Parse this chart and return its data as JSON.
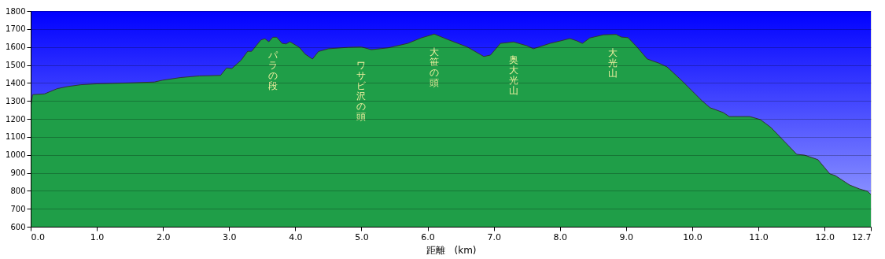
{
  "chart_data": {
    "type": "area",
    "xlabel": "距離　(km)",
    "x": [
      0.0,
      0.03,
      0.21,
      0.4,
      0.56,
      0.76,
      1.0,
      1.32,
      1.87,
      1.99,
      2.27,
      2.55,
      2.87,
      2.96,
      3.04,
      3.18,
      3.28,
      3.34,
      3.48,
      3.54,
      3.6,
      3.66,
      3.72,
      3.8,
      3.86,
      3.92,
      4.06,
      4.15,
      4.26,
      4.35,
      4.5,
      4.8,
      5.0,
      5.15,
      5.4,
      5.7,
      5.9,
      6.1,
      6.3,
      6.6,
      6.85,
      6.95,
      7.1,
      7.3,
      7.5,
      7.6,
      7.85,
      8.0,
      8.15,
      8.25,
      8.34,
      8.45,
      8.66,
      8.85,
      8.93,
      9.03,
      9.17,
      9.32,
      9.49,
      9.62,
      9.85,
      10.15,
      10.27,
      10.47,
      10.56,
      10.87,
      11.03,
      11.19,
      11.58,
      11.7,
      11.87,
      11.9,
      12.08,
      12.16,
      12.38,
      12.53,
      12.65,
      12.7
    ],
    "series": [
      {
        "color": "#1f9e48",
        "values": [
          1266,
          1335,
          1339,
          1368,
          1380,
          1390,
          1395,
          1398,
          1405,
          1415,
          1430,
          1439,
          1442,
          1483,
          1480,
          1526,
          1576,
          1576,
          1639,
          1646,
          1629,
          1654,
          1654,
          1620,
          1617,
          1629,
          1598,
          1560,
          1533,
          1575,
          1590,
          1598,
          1600,
          1585,
          1595,
          1620,
          1650,
          1672,
          1642,
          1600,
          1547,
          1555,
          1620,
          1628,
          1607,
          1590,
          1620,
          1633,
          1647,
          1635,
          1620,
          1650,
          1668,
          1670,
          1655,
          1652,
          1598,
          1533,
          1511,
          1489,
          1410,
          1300,
          1262,
          1235,
          1213,
          1213,
          1196,
          1152,
          1003,
          998,
          977,
          973,
          894,
          885,
          832,
          810,
          797,
          780
        ]
      }
    ],
    "xlim": [
      0,
      12.7
    ],
    "xticks": [
      {
        "value": 0,
        "label": "0.0"
      },
      {
        "value": 1,
        "label": "1.0"
      },
      {
        "value": 2,
        "label": "2.0"
      },
      {
        "value": 3,
        "label": "3.0"
      },
      {
        "value": 4,
        "label": "4.0"
      },
      {
        "value": 5,
        "label": "5.0"
      },
      {
        "value": 6,
        "label": "6.0"
      },
      {
        "value": 7,
        "label": "7.0"
      },
      {
        "value": 8,
        "label": "8.0"
      },
      {
        "value": 9,
        "label": "9.0"
      },
      {
        "value": 10,
        "label": "10.0"
      },
      {
        "value": 11,
        "label": "11.0"
      },
      {
        "value": 12,
        "label": "12.0"
      },
      12.7
    ],
    "ylim": [
      600,
      1800
    ],
    "yticks": [
      600,
      700,
      800,
      900,
      1000,
      1100,
      1200,
      1300,
      1400,
      1500,
      1600,
      1700,
      1800
    ],
    "grid": "y",
    "annotations": [
      {
        "text": "パラの段",
        "x": 3.66,
        "y": 1654
      },
      {
        "text": "ワサビ沢の頭",
        "x": 5.0,
        "y": 1600
      },
      {
        "text": "大笹の頭",
        "x": 6.1,
        "y": 1672
      },
      {
        "text": "奥大光山",
        "x": 7.3,
        "y": 1628
      },
      {
        "text": "大光山",
        "x": 8.8,
        "y": 1670
      }
    ]
  }
}
